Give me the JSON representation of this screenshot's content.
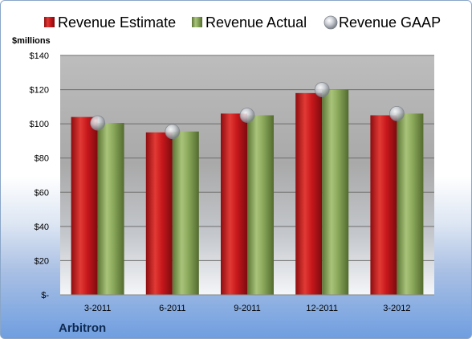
{
  "company": "Arbitron",
  "chart_data": {
    "type": "bar",
    "unit_label": "$millions",
    "categories": [
      "3-2011",
      "6-2011",
      "9-2011",
      "12-2011",
      "3-2012"
    ],
    "series": [
      {
        "name": "Revenue Estimate",
        "kind": "bar",
        "color": "#c0161b",
        "values": [
          104,
          95,
          106,
          118,
          105
        ]
      },
      {
        "name": "Revenue Actual",
        "kind": "bar",
        "color": "#8aa85a",
        "values": [
          100.5,
          95.5,
          105,
          120,
          106
        ]
      },
      {
        "name": "Revenue GAAP",
        "kind": "marker",
        "color": "#c4c8cf",
        "values": [
          100.5,
          95.5,
          105,
          120,
          106
        ]
      }
    ],
    "ylim": [
      0,
      140
    ],
    "yticks": [
      {
        "value": 0,
        "label": "$-"
      },
      {
        "value": 20,
        "label": "$20"
      },
      {
        "value": 40,
        "label": "$40"
      },
      {
        "value": 60,
        "label": "$60"
      },
      {
        "value": 80,
        "label": "$80"
      },
      {
        "value": 100,
        "label": "$100"
      },
      {
        "value": 120,
        "label": "$120"
      },
      {
        "value": 140,
        "label": "$140"
      }
    ],
    "grid": true,
    "legend_position": "top"
  }
}
